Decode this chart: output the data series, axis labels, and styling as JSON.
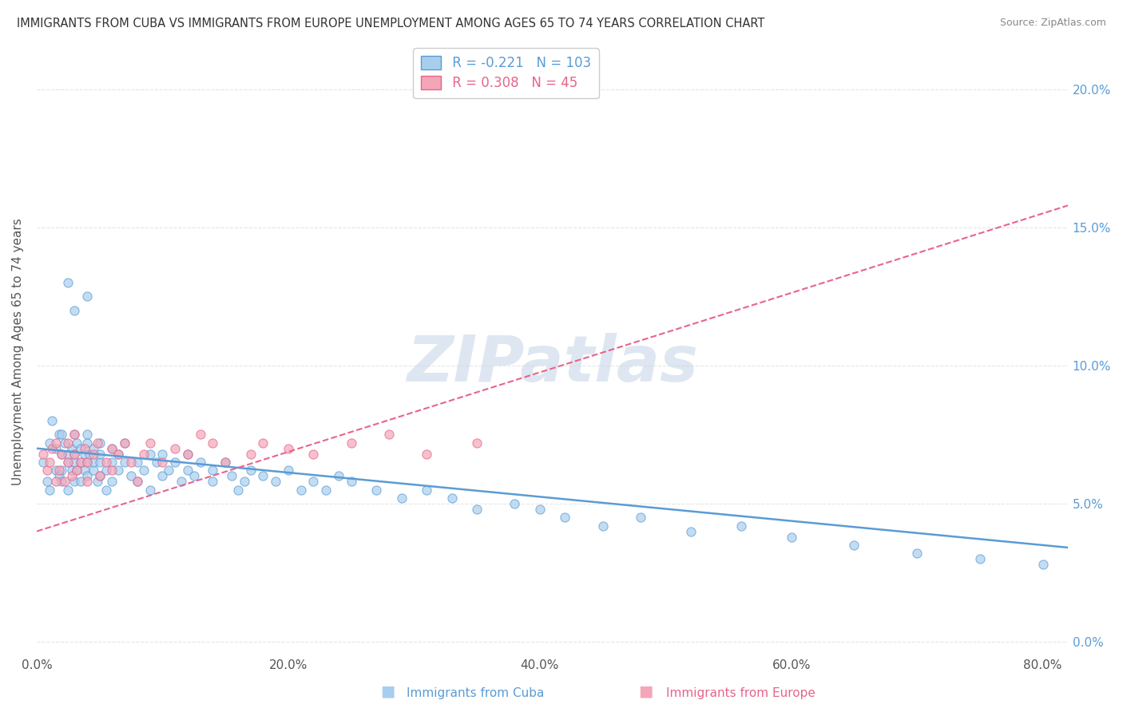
{
  "title": "IMMIGRANTS FROM CUBA VS IMMIGRANTS FROM EUROPE UNEMPLOYMENT AMONG AGES 65 TO 74 YEARS CORRELATION CHART",
  "source": "Source: ZipAtlas.com",
  "ylabel": "Unemployment Among Ages 65 to 74 years",
  "ytick_labels": [
    "0.0%",
    "5.0%",
    "10.0%",
    "15.0%",
    "20.0%"
  ],
  "xtick_labels": [
    "0.0%",
    "20.0%",
    "40.0%",
    "60.0%",
    "80.0%"
  ],
  "xlim": [
    0.0,
    0.82
  ],
  "ylim": [
    -0.005,
    0.215
  ],
  "legend_r_cuba": "-0.221",
  "legend_n_cuba": "103",
  "legend_r_europe": "0.308",
  "legend_n_europe": "45",
  "cuba_color": "#A8CEED",
  "europe_color": "#F4A6B8",
  "cuba_line_color": "#5B9BD5",
  "europe_line_color": "#E8648A",
  "watermark": "ZIPatlas",
  "watermark_color": "#C8D8E8",
  "background_color": "#FFFFFF",
  "grid_color": "#E5E5E5",
  "cuba_x": [
    0.005,
    0.008,
    0.01,
    0.01,
    0.012,
    0.015,
    0.015,
    0.018,
    0.018,
    0.02,
    0.02,
    0.02,
    0.02,
    0.022,
    0.025,
    0.025,
    0.025,
    0.028,
    0.028,
    0.03,
    0.03,
    0.03,
    0.03,
    0.032,
    0.032,
    0.035,
    0.035,
    0.035,
    0.038,
    0.038,
    0.04,
    0.04,
    0.04,
    0.04,
    0.042,
    0.045,
    0.045,
    0.045,
    0.048,
    0.05,
    0.05,
    0.05,
    0.05,
    0.055,
    0.055,
    0.06,
    0.06,
    0.06,
    0.065,
    0.065,
    0.07,
    0.07,
    0.075,
    0.08,
    0.08,
    0.085,
    0.09,
    0.09,
    0.095,
    0.1,
    0.1,
    0.105,
    0.11,
    0.115,
    0.12,
    0.12,
    0.125,
    0.13,
    0.14,
    0.14,
    0.15,
    0.155,
    0.16,
    0.165,
    0.17,
    0.18,
    0.19,
    0.2,
    0.21,
    0.22,
    0.23,
    0.24,
    0.25,
    0.27,
    0.29,
    0.31,
    0.33,
    0.35,
    0.38,
    0.4,
    0.42,
    0.45,
    0.48,
    0.52,
    0.56,
    0.6,
    0.65,
    0.7,
    0.75,
    0.8,
    0.025,
    0.03,
    0.04
  ],
  "cuba_y": [
    0.065,
    0.058,
    0.072,
    0.055,
    0.08,
    0.062,
    0.07,
    0.06,
    0.075,
    0.068,
    0.062,
    0.075,
    0.058,
    0.072,
    0.065,
    0.068,
    0.055,
    0.07,
    0.062,
    0.075,
    0.065,
    0.058,
    0.068,
    0.062,
    0.072,
    0.065,
    0.07,
    0.058,
    0.062,
    0.068,
    0.065,
    0.072,
    0.06,
    0.075,
    0.068,
    0.062,
    0.065,
    0.07,
    0.058,
    0.072,
    0.065,
    0.06,
    0.068,
    0.062,
    0.055,
    0.065,
    0.07,
    0.058,
    0.062,
    0.068,
    0.065,
    0.072,
    0.06,
    0.065,
    0.058,
    0.062,
    0.068,
    0.055,
    0.065,
    0.06,
    0.068,
    0.062,
    0.065,
    0.058,
    0.062,
    0.068,
    0.06,
    0.065,
    0.058,
    0.062,
    0.065,
    0.06,
    0.055,
    0.058,
    0.062,
    0.06,
    0.058,
    0.062,
    0.055,
    0.058,
    0.055,
    0.06,
    0.058,
    0.055,
    0.052,
    0.055,
    0.052,
    0.048,
    0.05,
    0.048,
    0.045,
    0.042,
    0.045,
    0.04,
    0.042,
    0.038,
    0.035,
    0.032,
    0.03,
    0.028,
    0.13,
    0.12,
    0.125
  ],
  "europe_x": [
    0.005,
    0.008,
    0.01,
    0.012,
    0.015,
    0.015,
    0.018,
    0.02,
    0.022,
    0.025,
    0.025,
    0.028,
    0.03,
    0.03,
    0.032,
    0.035,
    0.038,
    0.04,
    0.04,
    0.045,
    0.048,
    0.05,
    0.055,
    0.06,
    0.06,
    0.065,
    0.07,
    0.075,
    0.08,
    0.085,
    0.09,
    0.1,
    0.11,
    0.12,
    0.13,
    0.14,
    0.15,
    0.17,
    0.18,
    0.2,
    0.22,
    0.25,
    0.28,
    0.31,
    0.35
  ],
  "europe_y": [
    0.068,
    0.062,
    0.065,
    0.07,
    0.058,
    0.072,
    0.062,
    0.068,
    0.058,
    0.065,
    0.072,
    0.06,
    0.068,
    0.075,
    0.062,
    0.065,
    0.07,
    0.058,
    0.065,
    0.068,
    0.072,
    0.06,
    0.065,
    0.062,
    0.07,
    0.068,
    0.072,
    0.065,
    0.058,
    0.068,
    0.072,
    0.065,
    0.07,
    0.068,
    0.075,
    0.072,
    0.065,
    0.068,
    0.072,
    0.07,
    0.068,
    0.072,
    0.075,
    0.068,
    0.072
  ]
}
